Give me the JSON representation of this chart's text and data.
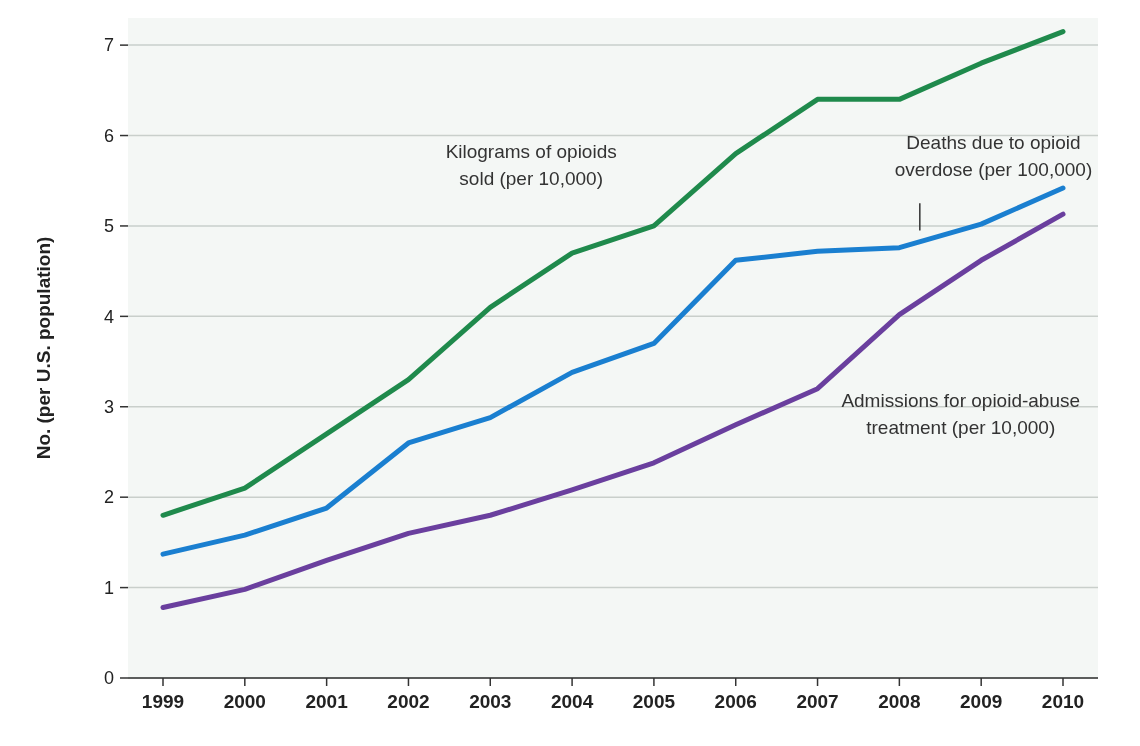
{
  "chart_data": {
    "type": "line",
    "ylabel": "No. (per U.S. population)",
    "categories": [
      "1999",
      "2000",
      "2001",
      "2002",
      "2003",
      "2004",
      "2005",
      "2006",
      "2007",
      "2008",
      "2009",
      "2010"
    ],
    "series": [
      {
        "name": "Kilograms of opioids sold (per 10,000)",
        "color": "#1f8a4c",
        "values": [
          1.8,
          2.1,
          2.7,
          3.3,
          4.1,
          4.7,
          5.0,
          5.8,
          6.4,
          6.4,
          6.8,
          7.15
        ]
      },
      {
        "name": "Deaths due to opioid overdose (per 100,000)",
        "color": "#1a7fd0",
        "values": [
          1.37,
          1.58,
          1.88,
          2.6,
          2.88,
          3.38,
          3.7,
          4.62,
          4.72,
          4.76,
          5.02,
          5.42
        ]
      },
      {
        "name": "Admissions for opioid-abuse treatment (per 10,000)",
        "color": "#6a3f9e",
        "values": [
          0.78,
          0.98,
          1.3,
          1.6,
          1.8,
          2.08,
          2.38,
          2.8,
          3.2,
          4.02,
          4.62,
          5.13
        ]
      }
    ],
    "ylim": [
      0,
      7.3
    ],
    "yticks": [
      0,
      1,
      2,
      3,
      4,
      5,
      6,
      7
    ],
    "grid": "y",
    "marker": "none",
    "line_style": "solid"
  }
}
